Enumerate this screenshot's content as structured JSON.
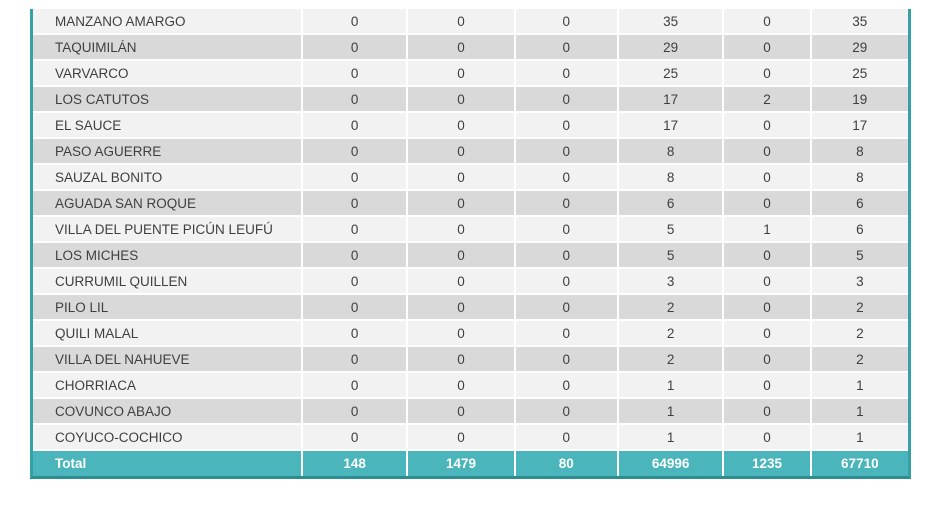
{
  "chart_data": {
    "type": "table",
    "description": "Data table of localities with six numeric columns and a total row; column headers are cropped out of view",
    "rows": [
      {
        "name": "MANZANO AMARGO",
        "values": [
          0,
          0,
          0,
          35,
          0,
          35
        ]
      },
      {
        "name": "TAQUIMILÁN",
        "values": [
          0,
          0,
          0,
          29,
          0,
          29
        ]
      },
      {
        "name": "VARVARCO",
        "values": [
          0,
          0,
          0,
          25,
          0,
          25
        ]
      },
      {
        "name": "LOS CATUTOS",
        "values": [
          0,
          0,
          0,
          17,
          2,
          19
        ]
      },
      {
        "name": "EL SAUCE",
        "values": [
          0,
          0,
          0,
          17,
          0,
          17
        ]
      },
      {
        "name": "PASO AGUERRE",
        "values": [
          0,
          0,
          0,
          8,
          0,
          8
        ]
      },
      {
        "name": "SAUZAL BONITO",
        "values": [
          0,
          0,
          0,
          8,
          0,
          8
        ]
      },
      {
        "name": "AGUADA SAN ROQUE",
        "values": [
          0,
          0,
          0,
          6,
          0,
          6
        ]
      },
      {
        "name": "VILLA DEL PUENTE PICÚN LEUFÚ",
        "values": [
          0,
          0,
          0,
          5,
          1,
          6
        ]
      },
      {
        "name": "LOS MICHES",
        "values": [
          0,
          0,
          0,
          5,
          0,
          5
        ]
      },
      {
        "name": "CURRUMIL QUILLEN",
        "values": [
          0,
          0,
          0,
          3,
          0,
          3
        ]
      },
      {
        "name": "PILO LIL",
        "values": [
          0,
          0,
          0,
          2,
          0,
          2
        ]
      },
      {
        "name": "QUILI MALAL",
        "values": [
          0,
          0,
          0,
          2,
          0,
          2
        ]
      },
      {
        "name": "VILLA DEL NAHUEVE",
        "values": [
          0,
          0,
          0,
          2,
          0,
          2
        ]
      },
      {
        "name": "CHORRIACA",
        "values": [
          0,
          0,
          0,
          1,
          0,
          1
        ]
      },
      {
        "name": "COVUNCO ABAJO",
        "values": [
          0,
          0,
          0,
          1,
          0,
          1
        ]
      },
      {
        "name": "COYUCO-COCHICO",
        "values": [
          0,
          0,
          0,
          1,
          0,
          1
        ]
      }
    ],
    "total": {
      "label": "Total",
      "values": [
        148,
        1479,
        80,
        64996,
        1235,
        67710
      ]
    }
  },
  "colors": {
    "row-light": "#f2f2f2",
    "row-dark": "#d9d9d9",
    "total-bg": "#4ab6bc",
    "border-teal": "#35a1a7",
    "border-dark": "#2e8c93",
    "text": "#3f3f3f",
    "total-text": "#ffffff"
  }
}
